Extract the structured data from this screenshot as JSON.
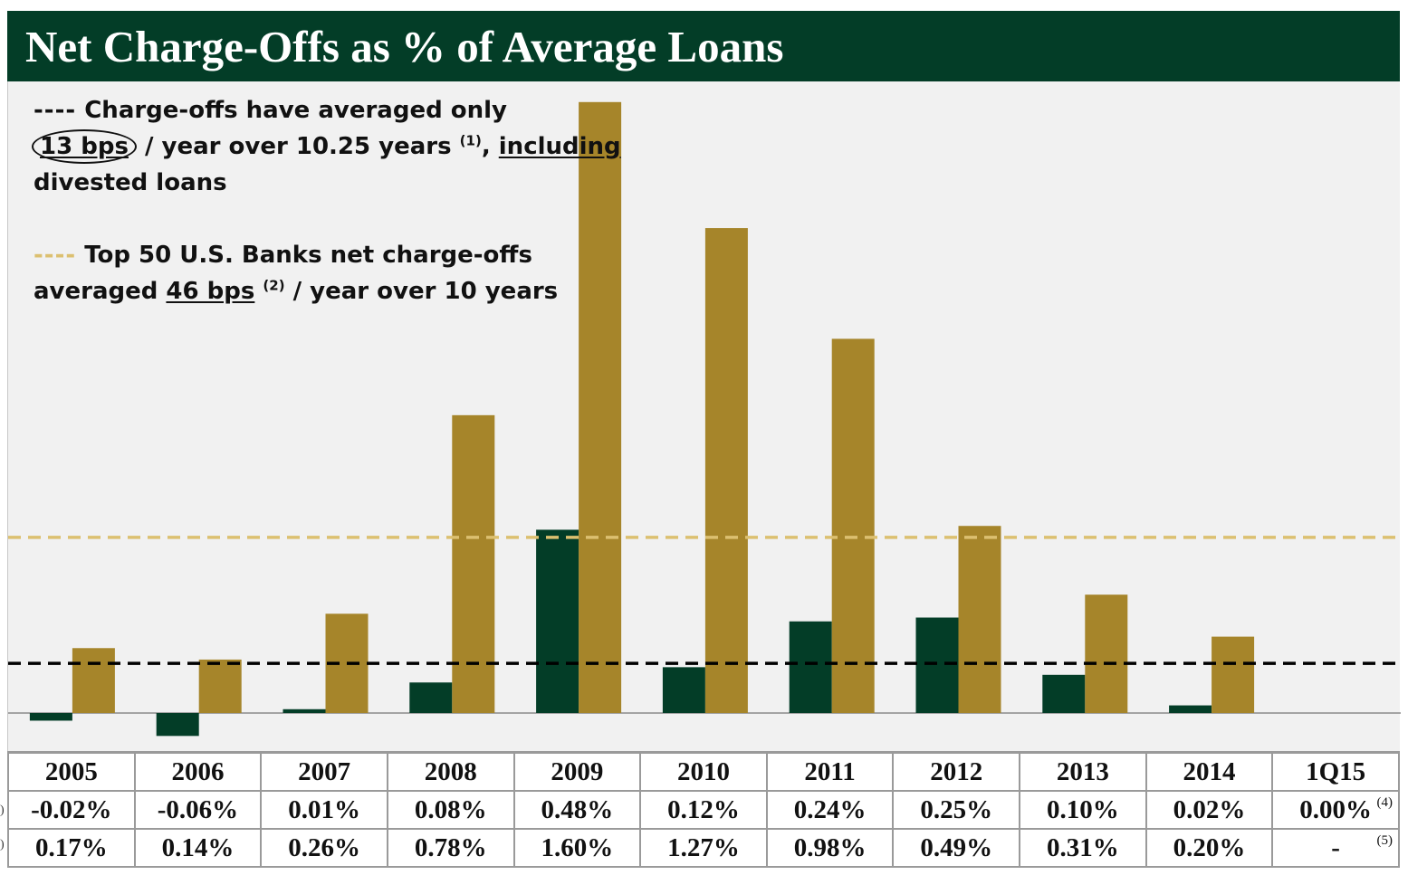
{
  "title": "Net Charge-Offs as % of Average Loans",
  "annotations": {
    "company_line1_prefix": "----",
    "company_line1_text": " Charge-offs have averaged only",
    "company_bps": "13 bps",
    "company_line2_text": "/ year over 10.25 years",
    "company_footnote": "(1)",
    "company_comma": ",",
    "company_including": "including",
    "company_line3_text": "divested loans",
    "peer_line1_prefix": "----",
    "peer_line1_text": " Top 50 U.S. Banks net charge-offs",
    "peer_line2_text": "averaged",
    "peer_bps": "46 bps",
    "peer_footnote": "(2)",
    "peer_line2_rest": " / year over 10 years"
  },
  "colors": {
    "header_bg": "#033d27",
    "company_bar": "#033d27",
    "peer_bar": "#a6852a",
    "peer_avg_line": "#dcc070",
    "company_avg_line": "#000000",
    "plot_bg": "#f1f1f1"
  },
  "chart_data": {
    "type": "bar",
    "categories": [
      "2005",
      "2006",
      "2007",
      "2008",
      "2009",
      "2010",
      "2011",
      "2012",
      "2013",
      "2014",
      "1Q15"
    ],
    "series": [
      {
        "values": [
          -0.02,
          -0.06,
          0.01,
          0.08,
          0.48,
          0.12,
          0.24,
          0.25,
          0.1,
          0.02,
          0.0
        ]
      },
      {
        "values": [
          0.17,
          0.14,
          0.26,
          0.78,
          1.6,
          1.27,
          0.98,
          0.49,
          0.31,
          0.2,
          null
        ]
      }
    ],
    "reference_lines": [
      {
        "value": 0.13,
        "style": "dashed",
        "color": "#000000"
      },
      {
        "value": 0.46,
        "style": "dashed",
        "color": "#dcc070"
      }
    ],
    "ylim": [
      -0.09,
      1.62
    ],
    "grid": false,
    "legend": "none"
  },
  "table": {
    "years": [
      "2005",
      "2006",
      "2007",
      "2008",
      "2009",
      "2010",
      "2011",
      "2012",
      "2013",
      "2014",
      "1Q15"
    ],
    "company_row": [
      "-0.02%",
      "-0.06%",
      "0.01%",
      "0.08%",
      "0.48%",
      "0.12%",
      "0.24%",
      "0.25%",
      "0.10%",
      "0.02%",
      "0.00%"
    ],
    "company_row_footnote": "(4)",
    "peer_row": [
      "0.17%",
      "0.14%",
      "0.26%",
      "0.78%",
      "1.60%",
      "1.27%",
      "0.98%",
      "0.49%",
      "0.31%",
      "0.20%",
      "-"
    ],
    "peer_row_footnote": "(5)",
    "row_stub_fragment": ")"
  }
}
